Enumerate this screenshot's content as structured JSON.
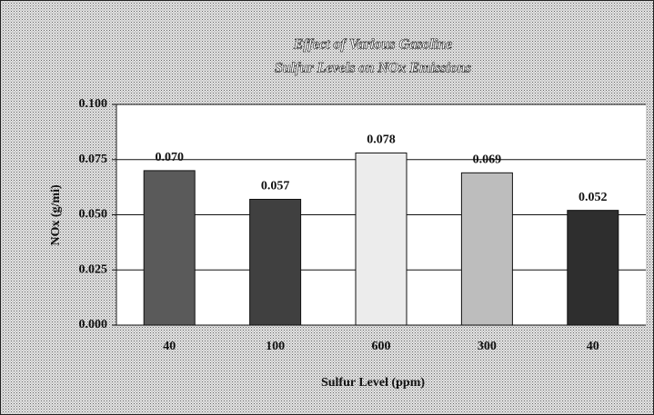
{
  "chart_data": {
    "type": "bar",
    "title": [
      "Effect of Various Gasoline",
      "Sulfur Levels on NOx Emissions"
    ],
    "x_label": "Sulfur Level (ppm)",
    "y_label": "NOx (g/mi)",
    "categories": [
      "40",
      "100",
      "600",
      "300",
      "40"
    ],
    "values": [
      0.07,
      0.057,
      0.078,
      0.069,
      0.052
    ],
    "value_labels": [
      "0.070",
      "0.057",
      "0.078",
      "0.069",
      "0.052"
    ],
    "colors": [
      "#5a5a5a",
      "#404040",
      "#ececec",
      "#bdbdbd",
      "#2e2e2e"
    ],
    "ylim": [
      0,
      0.1
    ],
    "yticks": [
      {
        "value": 0,
        "label": "0.000"
      },
      0.025,
      {
        "value": 0.05,
        "label": "0.050"
      },
      0.075,
      {
        "value": 0.1,
        "label": "0.100"
      }
    ],
    "grid": true
  }
}
